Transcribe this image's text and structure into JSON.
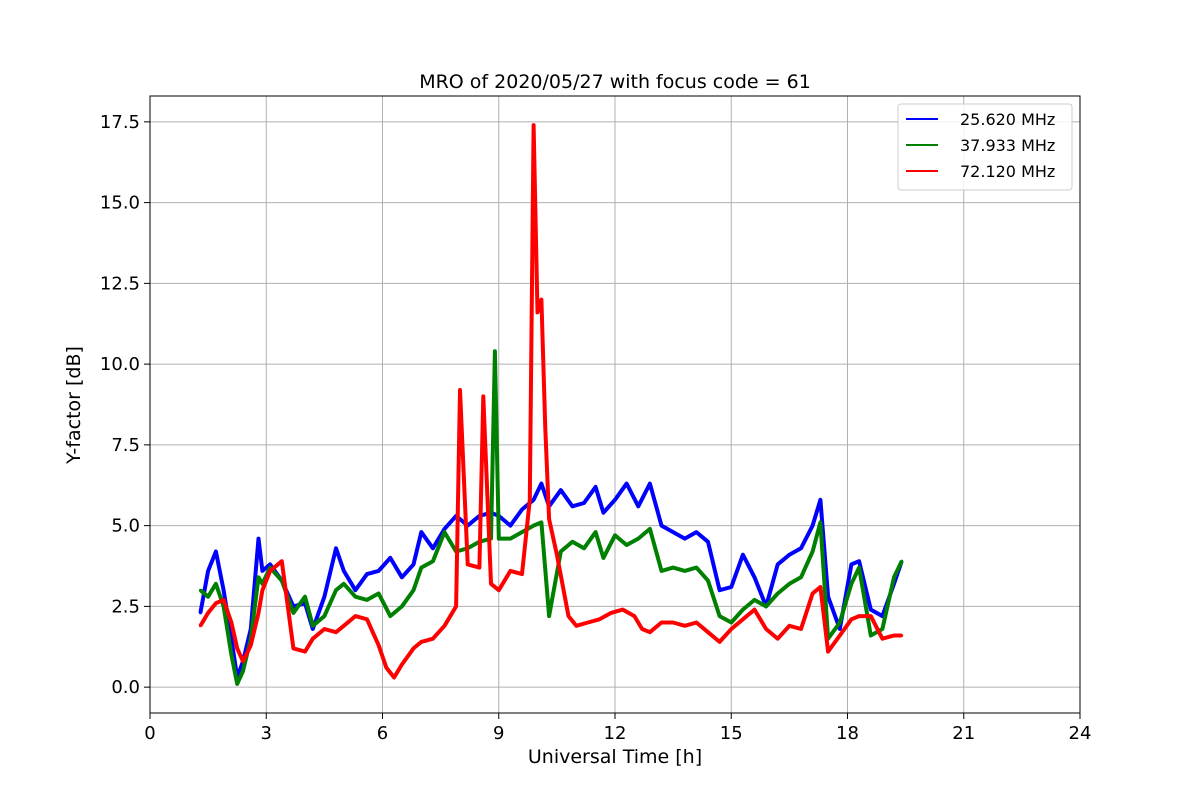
{
  "chart_data": {
    "type": "line",
    "title": "MRO of 2020/05/27 with focus code = 61",
    "xlabel": "Universal Time [h]",
    "ylabel": "Y-factor [dB]",
    "xlim": [
      0,
      24
    ],
    "ylim": [
      -0.8,
      18.3
    ],
    "xticks": [
      0,
      3,
      6,
      9,
      12,
      15,
      18,
      21,
      24
    ],
    "xtick_labels": [
      "0",
      "3",
      "6",
      "9",
      "12",
      "15",
      "18",
      "21",
      "24"
    ],
    "yticks": [
      0,
      2.5,
      5,
      7.5,
      10,
      12.5,
      15,
      17.5
    ],
    "ytick_labels": [
      "0.0",
      "2.5",
      "5.0",
      "7.5",
      "10.0",
      "12.5",
      "15.0",
      "17.5"
    ],
    "grid": true,
    "legend_position": "top-right",
    "series": [
      {
        "name": "25.620 MHz",
        "color": "#0000ff",
        "x": [
          1.3,
          1.5,
          1.7,
          1.9,
          2.1,
          2.25,
          2.4,
          2.6,
          2.8,
          2.9,
          3.1,
          3.4,
          3.7,
          4.0,
          4.2,
          4.5,
          4.8,
          5.0,
          5.3,
          5.6,
          5.9,
          6.2,
          6.5,
          6.8,
          7.0,
          7.3,
          7.6,
          7.9,
          8.2,
          8.5,
          8.8,
          9.0,
          9.3,
          9.6,
          9.9,
          10.1,
          10.3,
          10.6,
          10.9,
          11.2,
          11.5,
          11.7,
          12.0,
          12.3,
          12.6,
          12.9,
          13.2,
          13.5,
          13.8,
          14.1,
          14.4,
          14.7,
          15.0,
          15.3,
          15.6,
          15.9,
          16.2,
          16.5,
          16.8,
          17.1,
          17.3,
          17.5,
          17.8,
          18.1,
          18.3,
          18.6,
          18.9,
          19.2,
          19.4
        ],
        "values": [
          2.3,
          3.6,
          4.2,
          3.0,
          1.5,
          0.3,
          0.8,
          1.8,
          4.6,
          3.6,
          3.8,
          3.3,
          2.5,
          2.6,
          1.8,
          2.8,
          4.3,
          3.6,
          3.0,
          3.5,
          3.6,
          4.0,
          3.4,
          3.8,
          4.8,
          4.3,
          4.9,
          5.3,
          5.0,
          5.3,
          5.4,
          5.3,
          5.0,
          5.5,
          5.8,
          6.3,
          5.6,
          6.1,
          5.6,
          5.7,
          6.2,
          5.4,
          5.8,
          6.3,
          5.6,
          6.3,
          5.0,
          4.8,
          4.6,
          4.8,
          4.5,
          3.0,
          3.1,
          4.1,
          3.4,
          2.5,
          3.8,
          4.1,
          4.3,
          5.0,
          5.8,
          2.8,
          1.8,
          3.8,
          3.9,
          2.4,
          2.2,
          3.2,
          3.9
        ]
      },
      {
        "name": "37.933 MHz",
        "color": "#008000",
        "x": [
          1.3,
          1.5,
          1.7,
          1.9,
          2.1,
          2.25,
          2.4,
          2.6,
          2.8,
          2.9,
          3.1,
          3.4,
          3.7,
          4.0,
          4.2,
          4.5,
          4.8,
          5.0,
          5.3,
          5.6,
          5.9,
          6.2,
          6.5,
          6.8,
          7.0,
          7.3,
          7.6,
          7.9,
          8.2,
          8.5,
          8.8,
          8.9,
          9.0,
          9.3,
          9.6,
          9.9,
          10.1,
          10.3,
          10.6,
          10.9,
          11.2,
          11.5,
          11.7,
          12.0,
          12.3,
          12.6,
          12.9,
          13.2,
          13.5,
          13.8,
          14.1,
          14.4,
          14.7,
          15.0,
          15.3,
          15.6,
          15.9,
          16.2,
          16.5,
          16.8,
          17.1,
          17.3,
          17.5,
          17.8,
          18.1,
          18.3,
          18.6,
          18.9,
          19.2,
          19.4
        ],
        "values": [
          3.0,
          2.8,
          3.2,
          2.5,
          1.0,
          0.1,
          0.5,
          1.5,
          3.4,
          3.2,
          3.7,
          3.3,
          2.3,
          2.8,
          1.9,
          2.2,
          3.0,
          3.2,
          2.8,
          2.7,
          2.9,
          2.2,
          2.5,
          3.0,
          3.7,
          3.9,
          4.8,
          4.2,
          4.3,
          4.5,
          4.6,
          10.4,
          4.6,
          4.6,
          4.8,
          5.0,
          5.1,
          2.2,
          4.2,
          4.5,
          4.3,
          4.8,
          4.0,
          4.7,
          4.4,
          4.6,
          4.9,
          3.6,
          3.7,
          3.6,
          3.7,
          3.3,
          2.2,
          2.0,
          2.4,
          2.7,
          2.5,
          2.9,
          3.2,
          3.4,
          4.2,
          5.1,
          1.5,
          2.0,
          3.2,
          3.7,
          1.6,
          1.8,
          3.4,
          3.9
        ]
      },
      {
        "name": "72.120 MHz",
        "color": "#ff0000",
        "x": [
          1.3,
          1.5,
          1.7,
          1.9,
          2.1,
          2.25,
          2.4,
          2.6,
          2.8,
          2.9,
          3.1,
          3.4,
          3.7,
          4.0,
          4.2,
          4.5,
          4.8,
          5.0,
          5.3,
          5.6,
          5.9,
          6.1,
          6.3,
          6.5,
          6.8,
          7.0,
          7.3,
          7.6,
          7.9,
          8.0,
          8.2,
          8.5,
          8.6,
          8.8,
          9.0,
          9.3,
          9.6,
          9.8,
          9.9,
          10.0,
          10.1,
          10.2,
          10.3,
          10.5,
          10.8,
          11.0,
          11.3,
          11.6,
          11.9,
          12.2,
          12.5,
          12.7,
          12.9,
          13.2,
          13.5,
          13.8,
          14.1,
          14.4,
          14.7,
          15.0,
          15.3,
          15.6,
          15.9,
          16.2,
          16.5,
          16.8,
          17.1,
          17.3,
          17.5,
          17.8,
          18.1,
          18.3,
          18.6,
          18.9,
          19.2,
          19.4
        ],
        "values": [
          1.9,
          2.3,
          2.6,
          2.7,
          2.0,
          1.2,
          0.8,
          1.3,
          2.3,
          3.0,
          3.6,
          3.9,
          1.2,
          1.1,
          1.5,
          1.8,
          1.7,
          1.9,
          2.2,
          2.1,
          1.3,
          0.6,
          0.3,
          0.7,
          1.2,
          1.4,
          1.5,
          1.9,
          2.5,
          9.2,
          3.8,
          3.7,
          9.0,
          3.2,
          3.0,
          3.6,
          3.5,
          5.8,
          17.4,
          11.6,
          12.0,
          8.0,
          5.2,
          4.1,
          2.2,
          1.9,
          2.0,
          2.1,
          2.3,
          2.4,
          2.2,
          1.8,
          1.7,
          2.0,
          2.0,
          1.9,
          2.0,
          1.7,
          1.4,
          1.8,
          2.1,
          2.4,
          1.8,
          1.5,
          1.9,
          1.8,
          2.9,
          3.1,
          1.1,
          1.6,
          2.1,
          2.2,
          2.2,
          1.5,
          1.6,
          1.6
        ]
      }
    ]
  }
}
